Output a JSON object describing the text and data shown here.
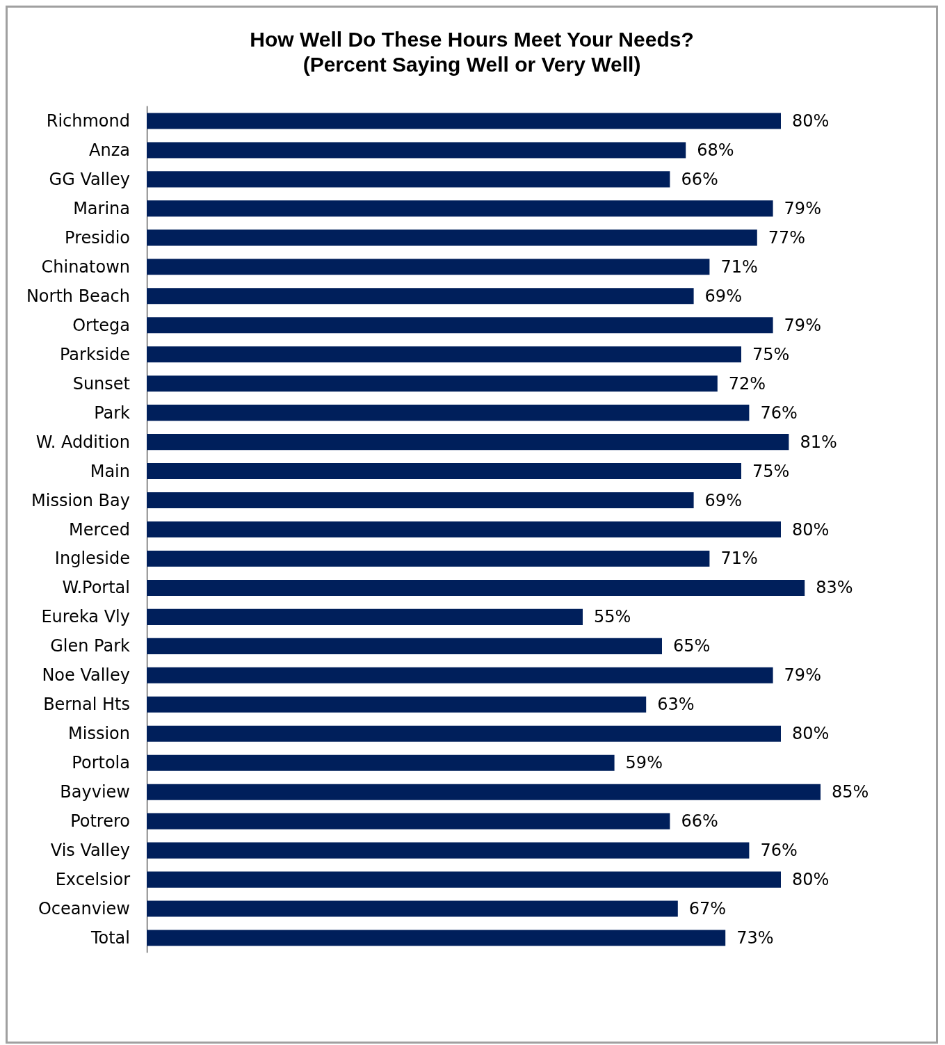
{
  "chart_data": {
    "type": "bar",
    "orientation": "horizontal",
    "title": "How Well Do These Hours Meet Your Needs?\n(Percent Saying Well or Very Well)",
    "categories": [
      "Richmond",
      "Anza",
      "GG Valley",
      "Marina",
      "Presidio",
      "Chinatown",
      "North Beach",
      "Ortega",
      "Parkside",
      "Sunset",
      "Park",
      "W. Addition",
      "Main",
      "Mission Bay",
      "Merced",
      "Ingleside",
      "W.Portal",
      "Eureka Vly",
      "Glen Park",
      "Noe Valley",
      "Bernal Hts",
      "Mission",
      "Portola",
      "Bayview",
      "Potrero",
      "Vis Valley",
      "Excelsior",
      "Oceanview",
      "Total"
    ],
    "values": [
      80,
      68,
      66,
      79,
      77,
      71,
      69,
      79,
      75,
      72,
      76,
      81,
      75,
      69,
      80,
      71,
      83,
      55,
      65,
      79,
      63,
      80,
      59,
      85,
      66,
      76,
      80,
      67,
      73
    ],
    "value_labels": [
      "80%",
      "68%",
      "66%",
      "79%",
      "77%",
      "71%",
      "69%",
      "79%",
      "75%",
      "72%",
      "76%",
      "81%",
      "75%",
      "69%",
      "80%",
      "71%",
      "83%",
      "55%",
      "65%",
      "79%",
      "63%",
      "80%",
      "59%",
      "85%",
      "66%",
      "76%",
      "80%",
      "67%",
      "73%"
    ],
    "color": "#001f5b",
    "tick_labels": "y"
  }
}
